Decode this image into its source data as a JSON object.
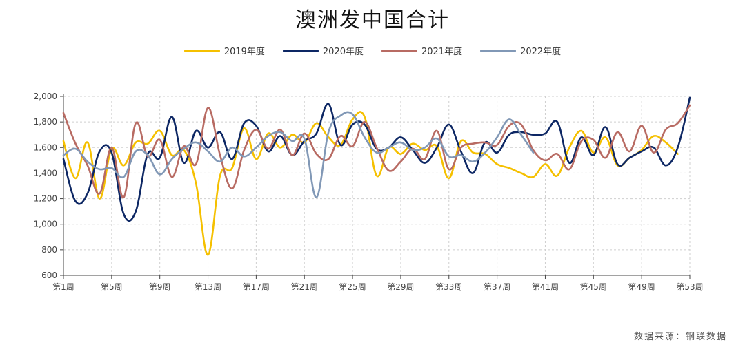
{
  "chart_data": {
    "type": "line",
    "title": "澳洲发中国合计",
    "xlabel": "",
    "ylabel": "",
    "ylim": [
      600,
      2000
    ],
    "yticks": [
      "600",
      "800",
      "1,000",
      "1,200",
      "1,400",
      "1,600",
      "1,800",
      "2,000"
    ],
    "ytick_values": [
      600,
      800,
      1000,
      1200,
      1400,
      1600,
      1800,
      2000
    ],
    "xticks": [
      "第1周",
      "第5周",
      "第9周",
      "第13周",
      "第17周",
      "第21周",
      "第25周",
      "第29周",
      "第33周",
      "第37周",
      "第41周",
      "第45周",
      "第49周",
      "第53周"
    ],
    "xtick_weeks": [
      1,
      5,
      9,
      13,
      17,
      21,
      25,
      29,
      33,
      37,
      41,
      45,
      49,
      53
    ],
    "grid": true,
    "legend_position": "top-center",
    "series": [
      {
        "name": "2019年度",
        "color": "#f5c000",
        "x": [
          1,
          2,
          3,
          4,
          5,
          6,
          7,
          8,
          9,
          10,
          11,
          12,
          13,
          14,
          15,
          16,
          17,
          18,
          19,
          20,
          21,
          22,
          23,
          24,
          25,
          26,
          27,
          28,
          29,
          30,
          31,
          32,
          33,
          34,
          35,
          36,
          37,
          38,
          39,
          40,
          41,
          42,
          43,
          44,
          45,
          46,
          47,
          48,
          49,
          50,
          51,
          52
        ],
        "values": [
          1650,
          1360,
          1640,
          1200,
          1590,
          1460,
          1640,
          1630,
          1730,
          1540,
          1580,
          1320,
          760,
          1380,
          1440,
          1750,
          1510,
          1710,
          1600,
          1700,
          1640,
          1790,
          1680,
          1620,
          1820,
          1840,
          1380,
          1600,
          1550,
          1630,
          1580,
          1610,
          1360,
          1650,
          1560,
          1550,
          1470,
          1440,
          1400,
          1370,
          1470,
          1380,
          1600,
          1730,
          1560,
          1680,
          1460,
          1520,
          1580,
          1690,
          1640,
          1550
        ]
      },
      {
        "name": "2020年度",
        "color": "#0d2764",
        "x": [
          1,
          2,
          3,
          4,
          5,
          6,
          7,
          8,
          9,
          10,
          11,
          12,
          13,
          14,
          15,
          16,
          17,
          18,
          19,
          20,
          21,
          22,
          23,
          24,
          25,
          26,
          27,
          28,
          29,
          30,
          31,
          32,
          33,
          34,
          35,
          36,
          37,
          38,
          39,
          40,
          41,
          42,
          43,
          44,
          45,
          46,
          47,
          48,
          49,
          50,
          51,
          52,
          53
        ],
        "values": [
          1510,
          1180,
          1240,
          1570,
          1560,
          1080,
          1100,
          1550,
          1520,
          1840,
          1480,
          1730,
          1600,
          1720,
          1510,
          1790,
          1770,
          1570,
          1690,
          1540,
          1650,
          1710,
          1940,
          1620,
          1780,
          1780,
          1590,
          1600,
          1680,
          1580,
          1480,
          1600,
          1780,
          1570,
          1400,
          1640,
          1560,
          1700,
          1720,
          1700,
          1710,
          1800,
          1480,
          1680,
          1540,
          1760,
          1470,
          1520,
          1570,
          1600,
          1460,
          1600,
          1990
        ]
      },
      {
        "name": "2021年度",
        "color": "#b86b63",
        "x": [
          1,
          2,
          3,
          4,
          5,
          6,
          7,
          8,
          9,
          10,
          11,
          12,
          13,
          14,
          15,
          16,
          17,
          18,
          19,
          20,
          21,
          22,
          23,
          24,
          25,
          26,
          27,
          28,
          29,
          30,
          31,
          32,
          33,
          34,
          35,
          36,
          37,
          38,
          39,
          40,
          41,
          42,
          43,
          44,
          45,
          46,
          47,
          48,
          49,
          50,
          51,
          52,
          53
        ],
        "values": [
          1870,
          1630,
          1460,
          1240,
          1600,
          1210,
          1790,
          1530,
          1660,
          1370,
          1610,
          1470,
          1910,
          1540,
          1280,
          1580,
          1740,
          1590,
          1740,
          1540,
          1710,
          1550,
          1510,
          1690,
          1610,
          1800,
          1600,
          1420,
          1490,
          1590,
          1510,
          1730,
          1430,
          1600,
          1630,
          1640,
          1620,
          1770,
          1780,
          1580,
          1500,
          1550,
          1430,
          1650,
          1660,
          1520,
          1720,
          1570,
          1770,
          1560,
          1740,
          1790,
          1930
        ]
      },
      {
        "name": "2022年度",
        "color": "#8198b6",
        "x": [
          1,
          2,
          3,
          4,
          5,
          6,
          7,
          8,
          9,
          10,
          11,
          12,
          13,
          14,
          15,
          16,
          17,
          18,
          19,
          20,
          21,
          22,
          23,
          24,
          25,
          26,
          27,
          28,
          29,
          30,
          31,
          32,
          33,
          34,
          35,
          36,
          37,
          38,
          39,
          40
        ],
        "values": [
          1540,
          1590,
          1490,
          1430,
          1440,
          1370,
          1570,
          1540,
          1390,
          1510,
          1590,
          1640,
          1570,
          1490,
          1600,
          1530,
          1600,
          1690,
          1720,
          1650,
          1670,
          1210,
          1720,
          1850,
          1860,
          1680,
          1560,
          1600,
          1640,
          1580,
          1600,
          1670,
          1530,
          1540,
          1490,
          1560,
          1680,
          1820,
          1700,
          1560
        ]
      }
    ],
    "source": "数据来源：钢联数据"
  }
}
